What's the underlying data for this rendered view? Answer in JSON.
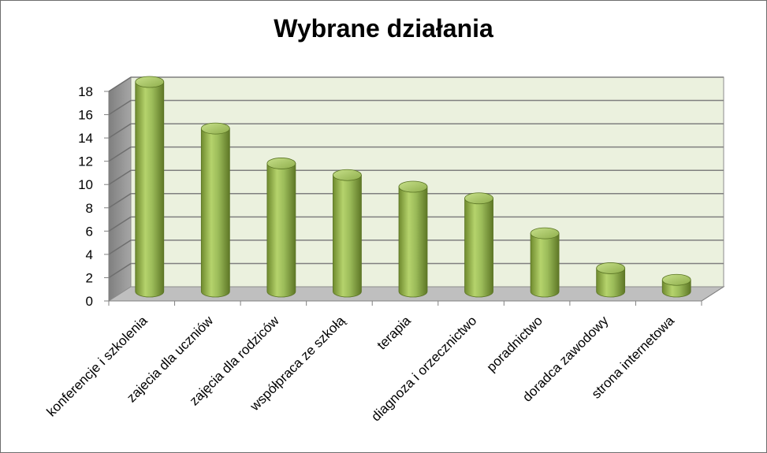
{
  "chart_data": {
    "type": "bar",
    "title": "Wybrane działania",
    "categories": [
      "konferencje i szkolenia",
      "zajecia dla uczniów",
      "zajęcia dla rodziców",
      "współpraca ze szkołą",
      "terapia",
      "diagnoza i orzecznictwo",
      "poradnictwo",
      "doradca zawodowy",
      "strona internetowa"
    ],
    "values": [
      18,
      14,
      11,
      10,
      9,
      8,
      5,
      2,
      1
    ],
    "ylim": [
      0,
      18
    ],
    "yticks": [
      0,
      2,
      4,
      6,
      8,
      10,
      12,
      14,
      16,
      18
    ],
    "grid": true,
    "colors": {
      "bar": "#9bbb59",
      "back_wall": "#ebf1de",
      "floor": "#bfbfbf",
      "side_wall": "#8c8c8c"
    }
  }
}
